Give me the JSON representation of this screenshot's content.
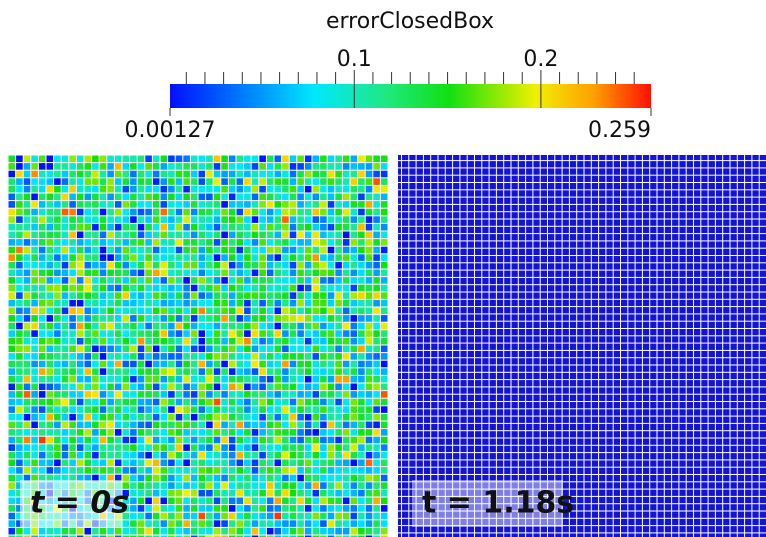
{
  "colorbar": {
    "title": "errorClosedBox",
    "min": 0.00127,
    "max": 0.259,
    "ticks": [
      0.1,
      0.2
    ],
    "minor_ticks": [
      0.01,
      0.02,
      0.03,
      0.04,
      0.05,
      0.06,
      0.07,
      0.08,
      0.09,
      0.11,
      0.12,
      0.13,
      0.14,
      0.15,
      0.16,
      0.17,
      0.18,
      0.19,
      0.21,
      0.22,
      0.23,
      0.24,
      0.25
    ]
  },
  "panels": [
    {
      "label": "t = 0s"
    },
    {
      "label": "t = 1.18s"
    }
  ]
}
